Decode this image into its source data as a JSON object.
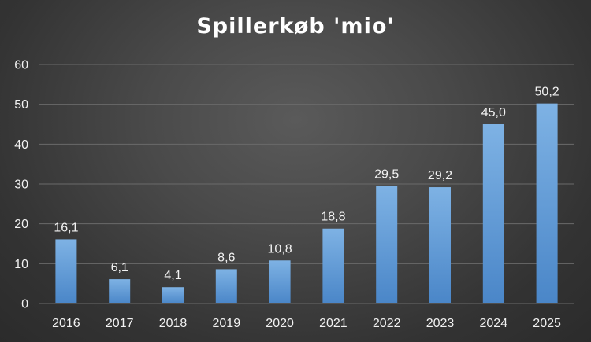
{
  "chart_data": {
    "type": "bar",
    "title": "Spillerkøb 'mio'",
    "categories": [
      "2016",
      "2017",
      "2018",
      "2019",
      "2020",
      "2021",
      "2022",
      "2023",
      "2024",
      "2025"
    ],
    "values": [
      16.1,
      6.1,
      4.1,
      8.6,
      10.8,
      18.8,
      29.5,
      29.2,
      45.0,
      50.2
    ],
    "data_labels": [
      "16,1",
      "6,1",
      "4,1",
      "8,6",
      "10,8",
      "18,8",
      "29,5",
      "29,2",
      "45,0",
      "50,2"
    ],
    "yticks": [
      0,
      10,
      20,
      30,
      40,
      50,
      60
    ],
    "ylim": [
      0,
      60
    ],
    "grid": true,
    "legend": "none",
    "colors": {
      "bar_top": "#7eb2e4",
      "bar_bottom": "#4a86c8",
      "gridline": "#6a6a6a",
      "text": "#f2f2f2"
    }
  }
}
